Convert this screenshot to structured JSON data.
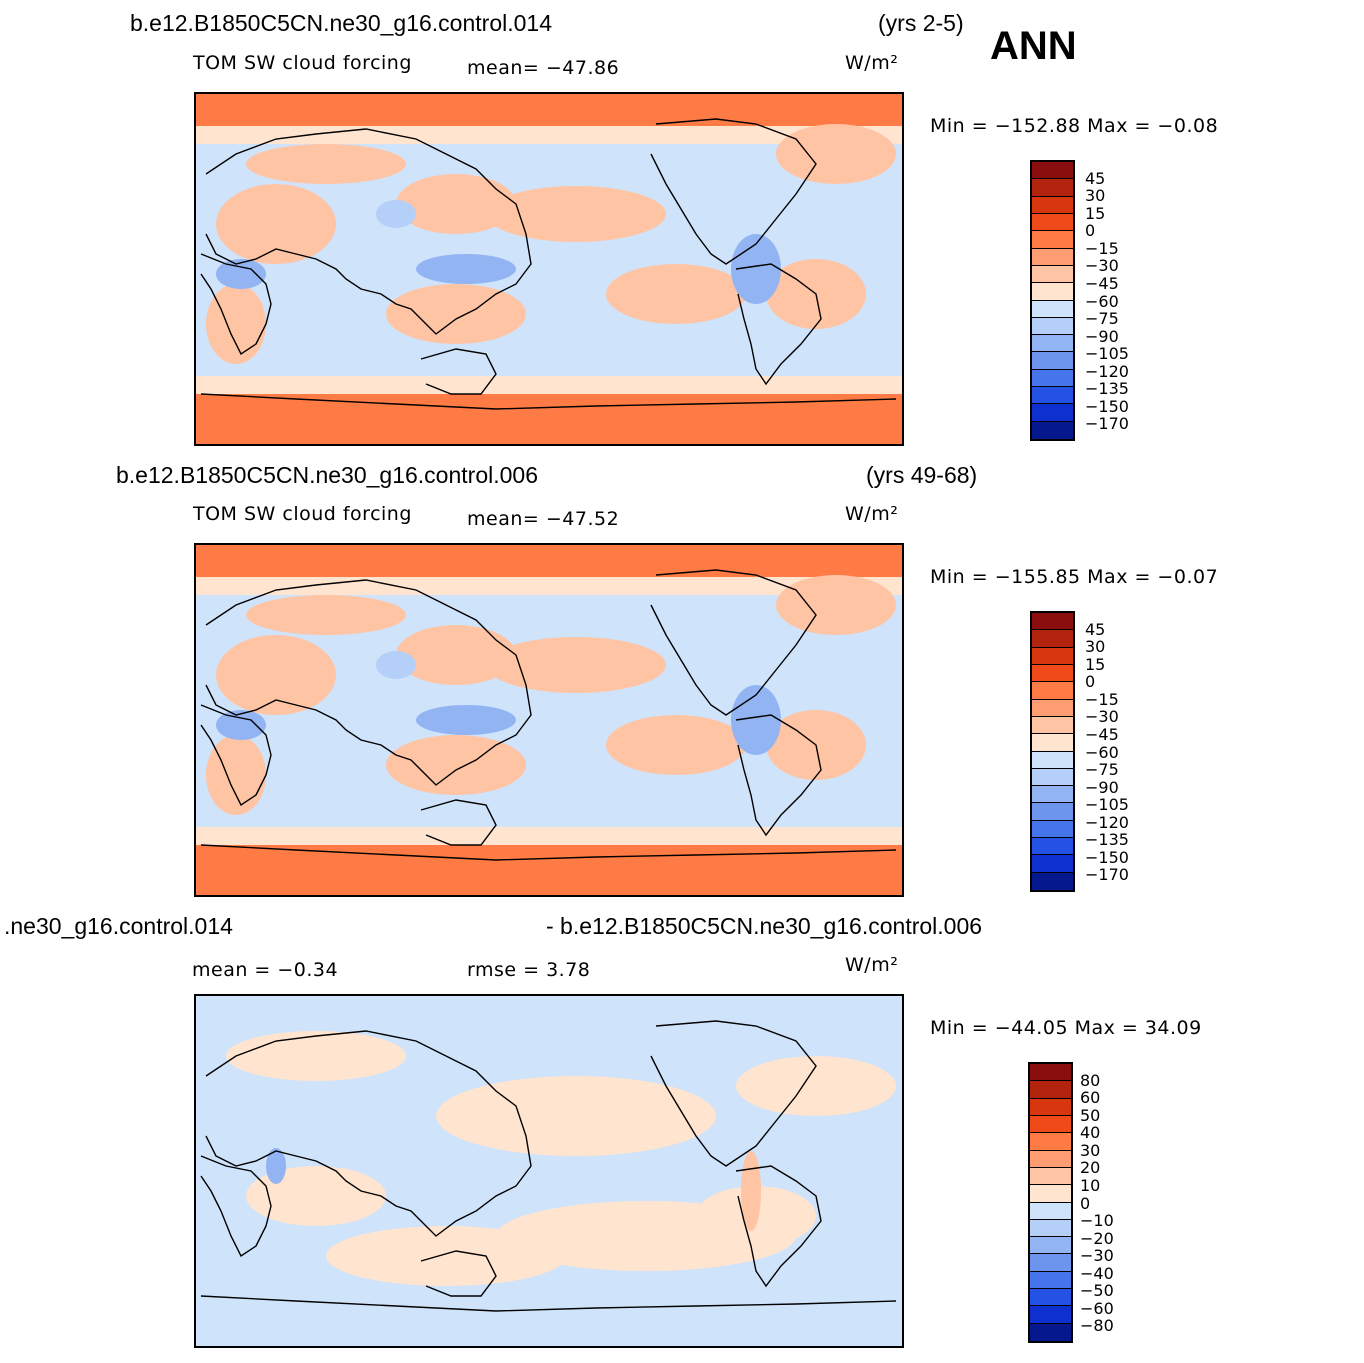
{
  "header_label": "ANN",
  "panels": [
    {
      "case_title": "b.e12.B1850C5CN.ne30_g16.control.014",
      "years": "(yrs 2-5)",
      "field_label": "TOM SW cloud forcing",
      "stat_text": "mean= −47.86",
      "units": "W/m²",
      "minmax": "Min = −152.88 Max =  −0.08",
      "colorbar_labels": [
        "45",
        "30",
        "15",
        "0",
        "−15",
        "−30",
        "−45",
        "−60",
        "−75",
        "−90",
        "−105",
        "−120",
        "−135",
        "−150",
        "−170"
      ],
      "colorbar_colors": [
        "#8b0e0e",
        "#b3240f",
        "#d8360f",
        "#f04a1a",
        "#ff7b45",
        "#ff9d72",
        "#ffc4a4",
        "#ffe4cf",
        "#cfe3fb",
        "#b4cff8",
        "#93b4f3",
        "#6d95ee",
        "#4674ea",
        "#2352e4",
        "#0d30cf",
        "#05188e"
      ],
      "map_style": "negative"
    },
    {
      "case_title": "b.e12.B1850C5CN.ne30_g16.control.006",
      "years": "(yrs 49-68)",
      "field_label": "TOM SW cloud forcing",
      "stat_text": "mean= −47.52",
      "units": "W/m²",
      "minmax": "Min = −155.85 Max =  −0.07",
      "colorbar_labels": [
        "45",
        "30",
        "15",
        "0",
        "−15",
        "−30",
        "−45",
        "−60",
        "−75",
        "−90",
        "−105",
        "−120",
        "−135",
        "−150",
        "−170"
      ],
      "colorbar_colors": [
        "#8b0e0e",
        "#b3240f",
        "#d8360f",
        "#f04a1a",
        "#ff7b45",
        "#ff9d72",
        "#ffc4a4",
        "#ffe4cf",
        "#cfe3fb",
        "#b4cff8",
        "#93b4f3",
        "#6d95ee",
        "#4674ea",
        "#2352e4",
        "#0d30cf",
        "#05188e"
      ],
      "map_style": "negative"
    },
    {
      "case_title_left": ".ne30_g16.control.014",
      "case_title_right": "- b.e12.B1850C5CN.ne30_g16.control.006",
      "mean_text": "mean =   −0.34",
      "rmse_text": "rmse =    3.78",
      "units": "W/m²",
      "minmax": "Min = −44.05 Max =   34.09",
      "colorbar_labels": [
        "80",
        "60",
        "50",
        "40",
        "30",
        "20",
        "10",
        "0",
        "−10",
        "−20",
        "−30",
        "−40",
        "−50",
        "−60",
        "−80"
      ],
      "colorbar_colors": [
        "#8b0e0e",
        "#b3240f",
        "#d8360f",
        "#f04a1a",
        "#ff7b45",
        "#ff9d72",
        "#ffc4a4",
        "#ffe4cf",
        "#cfe3fb",
        "#b4cff8",
        "#93b4f3",
        "#6d95ee",
        "#4674ea",
        "#2352e4",
        "#0d30cf",
        "#05188e"
      ],
      "map_style": "difference"
    }
  ]
}
